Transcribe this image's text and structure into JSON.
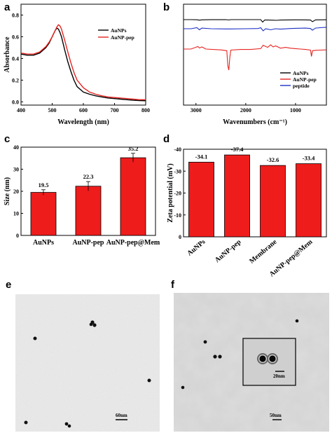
{
  "panels": {
    "a": "a",
    "b": "b",
    "c": "c",
    "d": "d",
    "e": "e",
    "f": "f"
  },
  "chart_data": [
    {
      "id": "a",
      "type": "line",
      "xlabel": "Wavelength (nm)",
      "ylabel": "Absorbance",
      "xlim": [
        400,
        800
      ],
      "ylim": [
        -0.03,
        0.9
      ],
      "xticks": [
        "400",
        "500",
        "600",
        "700",
        "800"
      ],
      "yticks": [
        "0.0",
        "0.2",
        "0.4",
        "0.6",
        "0.8"
      ],
      "legend_position": "top-right",
      "series": [
        {
          "name": "AuNPs",
          "color": "#000000",
          "x": [
            400,
            420,
            440,
            460,
            480,
            490,
            500,
            505,
            510,
            515,
            520,
            525,
            530,
            540,
            550,
            560,
            570,
            580,
            600,
            620,
            640,
            660,
            680,
            700,
            720,
            740,
            760,
            780,
            800
          ],
          "y": [
            0.44,
            0.43,
            0.43,
            0.45,
            0.5,
            0.54,
            0.6,
            0.63,
            0.66,
            0.68,
            0.67,
            0.64,
            0.6,
            0.48,
            0.37,
            0.28,
            0.2,
            0.14,
            0.09,
            0.07,
            0.055,
            0.045,
            0.035,
            0.03,
            0.025,
            0.02,
            0.015,
            0.012,
            0.01
          ]
        },
        {
          "name": "AuNP-pep",
          "color": "#e52420",
          "x": [
            400,
            420,
            440,
            460,
            480,
            490,
            500,
            505,
            510,
            515,
            520,
            525,
            530,
            540,
            550,
            560,
            570,
            580,
            600,
            620,
            640,
            660,
            680,
            700,
            720,
            740,
            760,
            780,
            800
          ],
          "y": [
            0.45,
            0.44,
            0.44,
            0.46,
            0.51,
            0.55,
            0.6,
            0.63,
            0.66,
            0.69,
            0.71,
            0.7,
            0.67,
            0.57,
            0.46,
            0.36,
            0.27,
            0.2,
            0.13,
            0.09,
            0.07,
            0.055,
            0.045,
            0.04,
            0.035,
            0.03,
            0.025,
            0.02,
            0.02
          ]
        }
      ]
    },
    {
      "id": "b",
      "type": "line",
      "xlabel": "Wavenumbers (cm⁻¹)",
      "ylabel": "",
      "xlim": [
        3250,
        380
      ],
      "xticks": [
        "3000",
        "2000",
        "1000"
      ],
      "legend_position": "bottom-right",
      "series": [
        {
          "name": "AuNPs",
          "color": "#000000",
          "x": [
            3250,
            3100,
            2980,
            2930,
            2880,
            2700,
            2400,
            2340,
            2300,
            2000,
            1700,
            1660,
            1620,
            1450,
            1380,
            1300,
            1100,
            1000,
            800,
            700,
            660,
            600,
            500,
            380
          ],
          "y": [
            0.9,
            0.9,
            0.88,
            0.82,
            0.87,
            0.89,
            0.9,
            0.85,
            0.9,
            0.9,
            0.9,
            0.55,
            0.85,
            0.82,
            0.8,
            0.84,
            0.86,
            0.87,
            0.86,
            0.84,
            0.6,
            0.86,
            0.87,
            0.88
          ]
        },
        {
          "name": "AuNP-pep",
          "color": "#e52420",
          "x": [
            3250,
            3100,
            2960,
            2930,
            2880,
            2800,
            2500,
            2380,
            2360,
            2340,
            2320,
            2300,
            2100,
            1900,
            1700,
            1650,
            1560,
            1500,
            1450,
            1400,
            1300,
            1200,
            1100,
            1000,
            900,
            800,
            700,
            680,
            660,
            600,
            500,
            380
          ],
          "y": [
            0.1,
            0.1,
            0.22,
            0.15,
            0.2,
            0.1,
            0.06,
            0.02,
            -0.7,
            -0.9,
            -0.3,
            0.05,
            0.08,
            0.08,
            0.12,
            0.28,
            0.18,
            0.3,
            0.2,
            0.25,
            0.14,
            0.18,
            0.14,
            0.12,
            0.1,
            0.08,
            0.05,
            -0.25,
            0.02,
            0.04,
            0.05,
            0.06
          ]
        },
        {
          "name": "peptide",
          "color": "#1c2fc4",
          "x": [
            3250,
            3100,
            2980,
            2930,
            2880,
            2700,
            2400,
            2300,
            2000,
            1750,
            1700,
            1650,
            1600,
            1500,
            1400,
            1300,
            1100,
            1000,
            800,
            700,
            660,
            600,
            500,
            380
          ],
          "y": [
            0.55,
            0.55,
            0.6,
            0.5,
            0.58,
            0.55,
            0.54,
            0.54,
            0.55,
            0.56,
            0.6,
            0.45,
            0.55,
            0.5,
            0.55,
            0.53,
            0.56,
            0.57,
            0.58,
            0.56,
            0.48,
            0.58,
            0.6,
            0.62
          ]
        }
      ]
    },
    {
      "id": "c",
      "type": "bar",
      "ylabel": "Size (nm)",
      "categories": [
        "AuNPs",
        "AuNP-pep",
        "AuNP-pep@Mem"
      ],
      "values": [
        19.5,
        22.3,
        35.2
      ],
      "value_labels": [
        "19.5",
        "22.3",
        "35.2"
      ],
      "errors": [
        1.2,
        2.1,
        2.0
      ],
      "ylim": [
        0,
        40
      ],
      "yticks": [
        "0",
        "10",
        "20",
        "30",
        "40"
      ],
      "color": "#ef1c1c"
    },
    {
      "id": "d",
      "type": "bar",
      "ylabel": "Zeta potential (mV)",
      "categories": [
        "AuNPs",
        "AuNP-pep",
        "Membrane",
        "AuNP-pep@Mem"
      ],
      "values": [
        -34.1,
        -37.4,
        -32.6,
        -33.4
      ],
      "value_labels": [
        "-34.1",
        "-37.4",
        "-32.6",
        "-33.4"
      ],
      "ylim": [
        0,
        -40
      ],
      "yticks": [
        "0",
        "-10",
        "-20",
        "-30",
        "-40"
      ],
      "color": "#ef1c1c"
    }
  ],
  "images": {
    "e": {
      "scale_bar": "60nm"
    },
    "f": {
      "scale_bar": "50nm",
      "inset_scale_bar": "20nm"
    }
  }
}
